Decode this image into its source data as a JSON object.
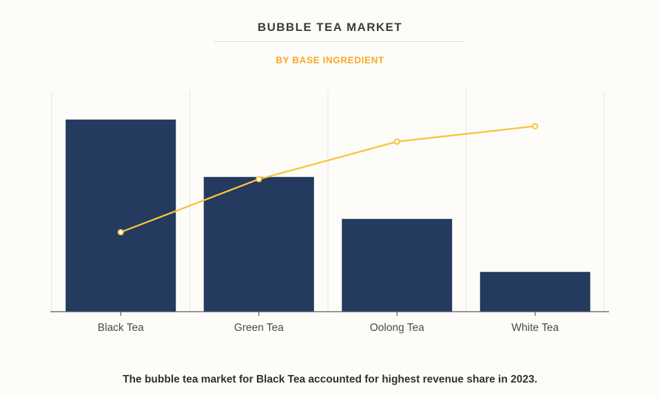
{
  "page": {
    "background": "#FDFCF9",
    "caption": "The bubble tea market for Black Tea accounted for highest revenue share in 2023."
  },
  "header": {
    "title": "BUBBLE TEA MARKET",
    "subtitle": "BY BASE INGREDIENT",
    "title_color": "#3B3B3B",
    "subtitle_color": "#F9A825"
  },
  "chart_data": {
    "type": "bar",
    "title": "BUBBLE TEA MARKET",
    "subtitle": "BY BASE INGREDIENT",
    "categories": [
      "Black Tea",
      "Green Tea",
      "Oolong Tea",
      "White Tea"
    ],
    "series": [
      {
        "name": "revenue-share-bars",
        "type": "bar",
        "values": [
          87,
          61,
          42,
          18
        ],
        "color": "#243A5E"
      },
      {
        "name": "trend-line",
        "type": "line",
        "values": [
          36,
          60,
          77,
          84
        ],
        "color": "#FBC242",
        "marker_fill": "#FFFFFF"
      }
    ],
    "xlabel": "",
    "ylabel": "",
    "ylim": [
      0,
      100
    ],
    "y_axis_labels_shown": false,
    "grid": {
      "vertical": true,
      "horizontal": false
    },
    "legend_position": "none",
    "gridline_color": "#E8E5E0",
    "axis_line_color": "#55565A",
    "axis_label_color": "#4A4A4A"
  }
}
